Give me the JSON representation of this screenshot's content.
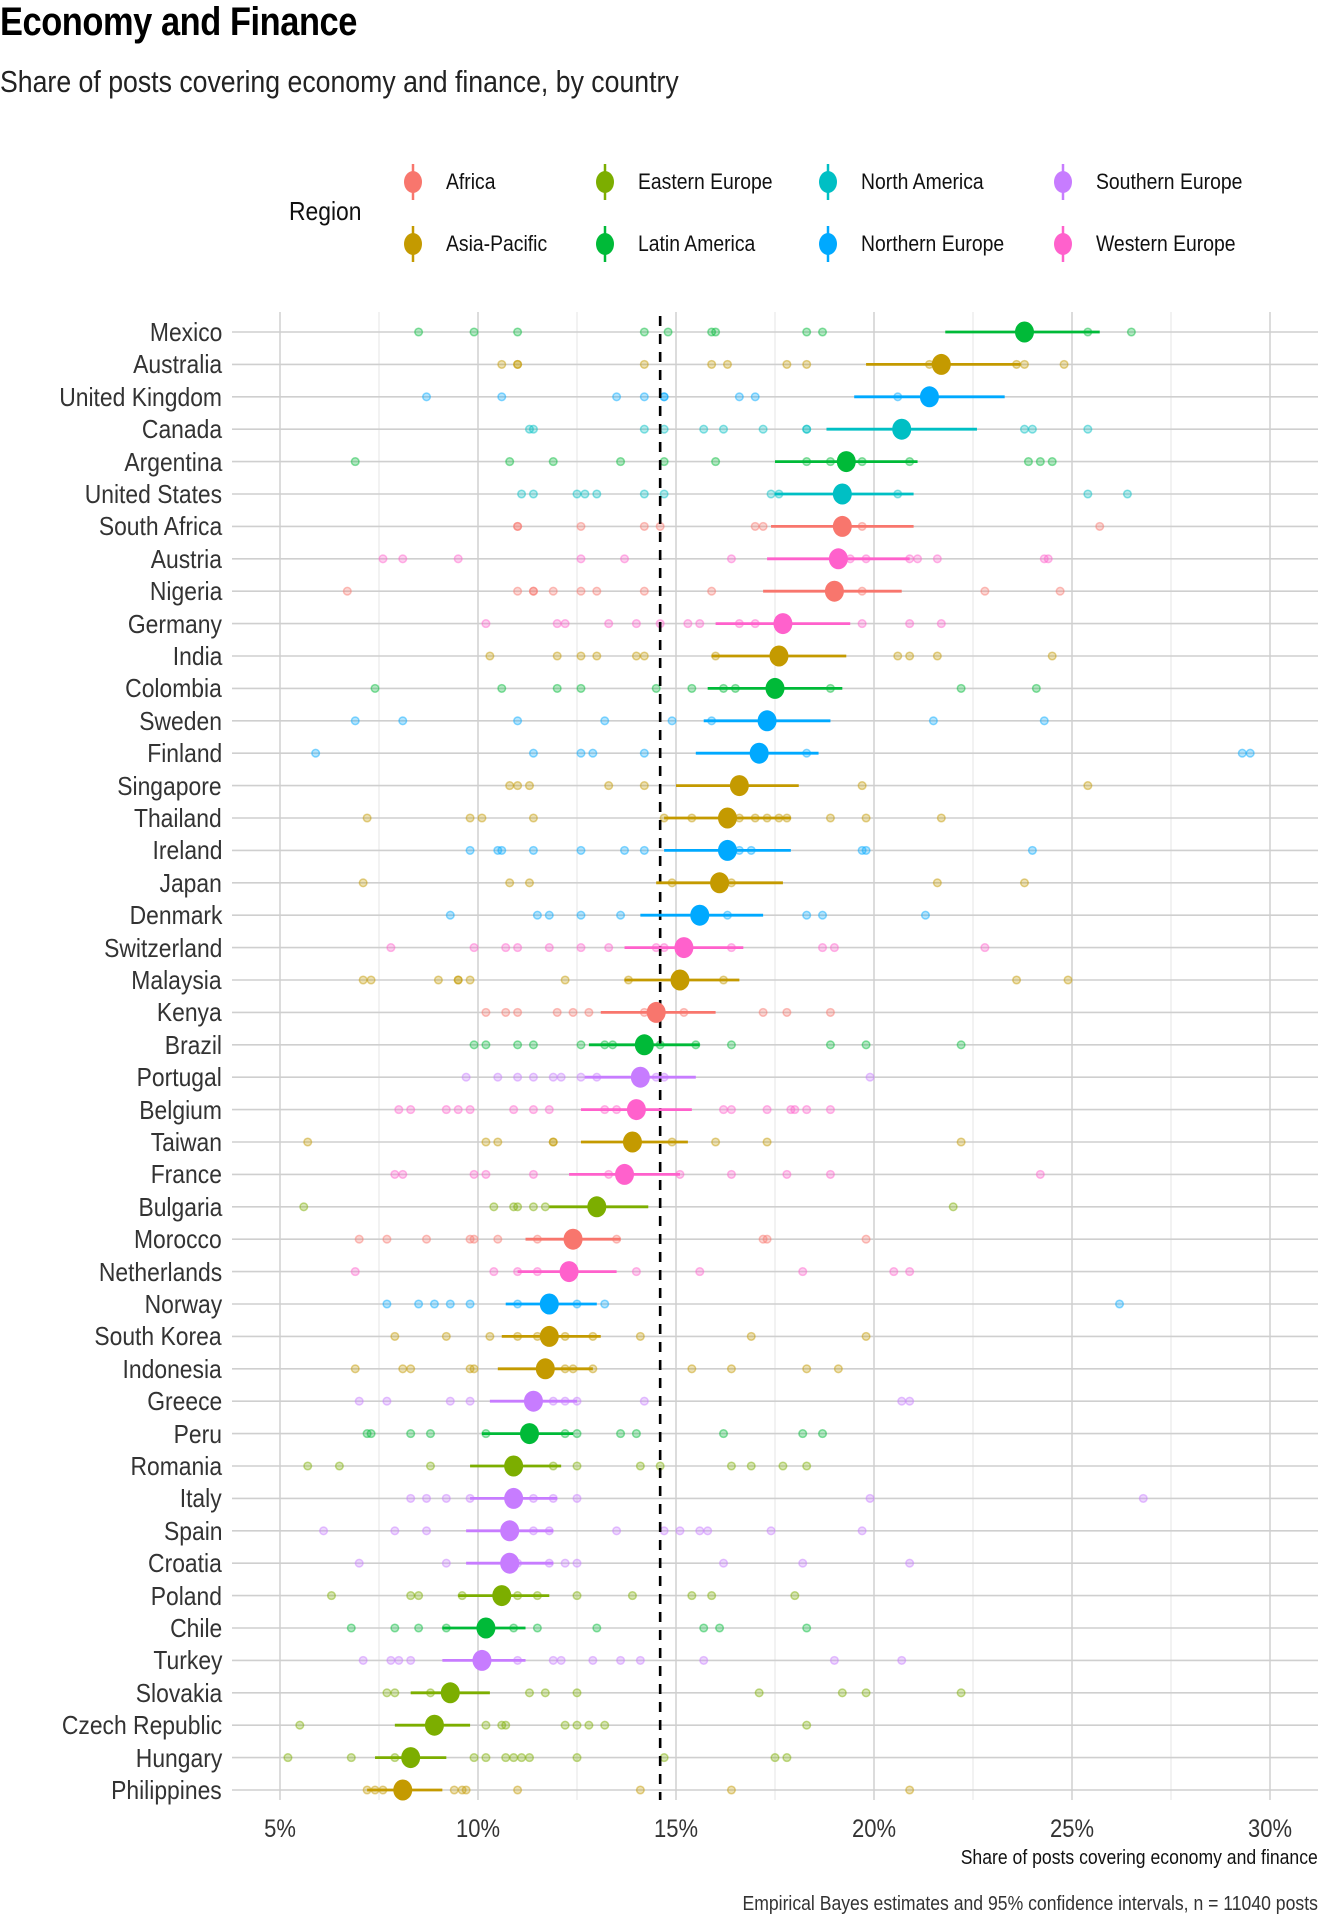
{
  "title": "Economy and Finance",
  "subtitle": "Share of posts covering economy and finance, by country",
  "legend": {
    "title": "Region",
    "items": [
      {
        "label": "Africa",
        "color": "#F8766D"
      },
      {
        "label": "Asia-Pacific",
        "color": "#C49A00"
      },
      {
        "label": "Eastern Europe",
        "color": "#7CAE00"
      },
      {
        "label": "Latin America",
        "color": "#00BA38"
      },
      {
        "label": "North America",
        "color": "#00BFC4"
      },
      {
        "label": "Northern Europe",
        "color": "#00A9FF"
      },
      {
        "label": "Southern Europe",
        "color": "#C77CFF"
      },
      {
        "label": "Western Europe",
        "color": "#FF61CC"
      }
    ]
  },
  "chart_data": {
    "type": "scatter",
    "subtype": "dot-and-whisker (point estimate with 95% CI plus raw source points)",
    "title": "Economy and Finance",
    "subtitle": "Share of posts covering economy and finance, by country",
    "xlabel": "Share of posts covering economy and finance",
    "ylabel": "",
    "caption": "Empirical Bayes estimates and 95% confidence intervals, n = 11040 posts",
    "xlim": [
      3.8,
      31.4
    ],
    "x_ticks": [
      5,
      10,
      15,
      20,
      25,
      30
    ],
    "x_tick_labels": [
      "5%",
      "10%",
      "15%",
      "20%",
      "25%",
      "30%"
    ],
    "reference_line": {
      "value": 14.6,
      "style": "dashed"
    },
    "grid": true,
    "legend_position": "top",
    "units": "percent",
    "countries": [
      {
        "country": "Mexico",
        "region": "Latin America",
        "estimate": 23.8,
        "ci": [
          21.8,
          25.7
        ],
        "points": [
          8.5,
          9.9,
          11.0,
          14.2,
          14.8,
          15.9,
          16.0,
          18.3,
          18.7,
          25.4,
          26.5
        ]
      },
      {
        "country": "Australia",
        "region": "Asia-Pacific",
        "estimate": 21.7,
        "ci": [
          19.8,
          23.7
        ],
        "points": [
          10.6,
          11.0,
          11.0,
          14.2,
          15.9,
          16.3,
          17.8,
          18.3,
          21.4,
          23.6,
          23.8,
          24.8
        ]
      },
      {
        "country": "United Kingdom",
        "region": "Northern Europe",
        "estimate": 21.4,
        "ci": [
          19.5,
          23.3
        ],
        "points": [
          8.7,
          10.6,
          13.5,
          14.2,
          14.7,
          14.7,
          16.6,
          17.0,
          20.6
        ]
      },
      {
        "country": "Canada",
        "region": "North America",
        "estimate": 20.7,
        "ci": [
          18.8,
          22.6
        ],
        "points": [
          11.3,
          11.4,
          14.2,
          14.7,
          15.7,
          16.2,
          17.2,
          18.3,
          18.3,
          23.8,
          24.0,
          25.4
        ]
      },
      {
        "country": "Argentina",
        "region": "Latin America",
        "estimate": 19.3,
        "ci": [
          17.5,
          21.1
        ],
        "points": [
          6.9,
          10.8,
          11.9,
          13.6,
          14.7,
          16.0,
          18.3,
          18.9,
          19.7,
          20.9,
          23.9,
          24.2,
          24.5
        ]
      },
      {
        "country": "United States",
        "region": "North America",
        "estimate": 19.2,
        "ci": [
          17.5,
          21.0
        ],
        "points": [
          11.1,
          11.4,
          12.5,
          12.7,
          13.0,
          14.2,
          14.7,
          17.4,
          17.6,
          20.6,
          25.4,
          26.4
        ]
      },
      {
        "country": "South Africa",
        "region": "Africa",
        "estimate": 19.2,
        "ci": [
          17.4,
          21.0
        ],
        "points": [
          11.0,
          11.0,
          12.6,
          14.2,
          14.6,
          17.0,
          17.2,
          19.7,
          25.7
        ]
      },
      {
        "country": "Austria",
        "region": "Western Europe",
        "estimate": 19.1,
        "ci": [
          17.3,
          20.9
        ],
        "points": [
          7.6,
          8.1,
          9.5,
          12.6,
          13.7,
          16.4,
          19.4,
          19.8,
          20.9,
          21.1,
          21.6,
          24.3,
          24.4
        ]
      },
      {
        "country": "Nigeria",
        "region": "Africa",
        "estimate": 19.0,
        "ci": [
          17.2,
          20.7
        ],
        "points": [
          6.7,
          11.0,
          11.4,
          11.4,
          11.9,
          12.6,
          13.0,
          14.2,
          15.9,
          19.7,
          22.8,
          24.7
        ]
      },
      {
        "country": "Germany",
        "region": "Western Europe",
        "estimate": 17.7,
        "ci": [
          16.0,
          19.4
        ],
        "points": [
          10.2,
          12.0,
          12.2,
          13.3,
          14.0,
          14.6,
          15.3,
          15.6,
          16.6,
          17.0,
          19.7,
          20.9,
          21.7
        ]
      },
      {
        "country": "India",
        "region": "Asia-Pacific",
        "estimate": 17.6,
        "ci": [
          15.9,
          19.3
        ],
        "points": [
          10.3,
          12.0,
          12.6,
          13.0,
          14.0,
          14.2,
          16.0,
          20.6,
          20.9,
          21.6,
          24.5
        ]
      },
      {
        "country": "Colombia",
        "region": "Latin America",
        "estimate": 17.5,
        "ci": [
          15.8,
          19.2
        ],
        "points": [
          7.4,
          10.6,
          12.0,
          12.6,
          14.5,
          15.4,
          16.2,
          16.5,
          18.9,
          22.2,
          24.1
        ]
      },
      {
        "country": "Sweden",
        "region": "Northern Europe",
        "estimate": 17.3,
        "ci": [
          15.7,
          18.9
        ],
        "points": [
          6.9,
          8.1,
          11.0,
          13.2,
          14.9,
          15.9,
          21.5,
          24.3
        ]
      },
      {
        "country": "Finland",
        "region": "Northern Europe",
        "estimate": 17.1,
        "ci": [
          15.5,
          18.6
        ],
        "points": [
          5.9,
          11.4,
          12.6,
          12.9,
          14.2,
          18.3,
          29.3,
          29.5
        ]
      },
      {
        "country": "Singapore",
        "region": "Asia-Pacific",
        "estimate": 16.6,
        "ci": [
          15.0,
          18.1
        ],
        "points": [
          10.8,
          11.0,
          11.3,
          13.3,
          14.2,
          19.7,
          25.4
        ]
      },
      {
        "country": "Thailand",
        "region": "Asia-Pacific",
        "estimate": 16.3,
        "ci": [
          14.7,
          17.9
        ],
        "points": [
          7.2,
          9.8,
          10.1,
          11.4,
          14.7,
          15.4,
          16.6,
          17.0,
          17.3,
          17.6,
          17.8,
          18.9,
          19.8,
          21.7
        ]
      },
      {
        "country": "Ireland",
        "region": "Northern Europe",
        "estimate": 16.3,
        "ci": [
          14.7,
          17.9
        ],
        "points": [
          9.8,
          10.5,
          10.6,
          11.4,
          12.6,
          13.7,
          14.2,
          16.6,
          16.9,
          19.7,
          19.8,
          24.0
        ]
      },
      {
        "country": "Japan",
        "region": "Asia-Pacific",
        "estimate": 16.1,
        "ci": [
          14.5,
          17.7
        ],
        "points": [
          7.1,
          10.8,
          11.3,
          14.9,
          16.4,
          21.6,
          23.8
        ]
      },
      {
        "country": "Denmark",
        "region": "Northern Europe",
        "estimate": 15.6,
        "ci": [
          14.1,
          17.2
        ],
        "points": [
          9.3,
          11.5,
          11.8,
          12.6,
          13.6,
          16.3,
          18.3,
          18.7,
          21.3
        ]
      },
      {
        "country": "Switzerland",
        "region": "Western Europe",
        "estimate": 15.2,
        "ci": [
          13.7,
          16.7
        ],
        "points": [
          7.8,
          9.9,
          10.7,
          11.0,
          11.8,
          12.6,
          13.3,
          14.5,
          14.7,
          16.4,
          18.7,
          19.0,
          22.8
        ]
      },
      {
        "country": "Malaysia",
        "region": "Asia-Pacific",
        "estimate": 15.1,
        "ci": [
          13.7,
          16.6
        ],
        "points": [
          7.1,
          7.3,
          9.0,
          9.5,
          9.5,
          9.8,
          12.2,
          13.8,
          16.2,
          23.6,
          24.9
        ]
      },
      {
        "country": "Kenya",
        "region": "Africa",
        "estimate": 14.5,
        "ci": [
          13.1,
          16.0
        ],
        "points": [
          10.2,
          10.7,
          11.0,
          12.0,
          12.4,
          12.8,
          14.2,
          15.2,
          17.2,
          17.8,
          18.9
        ]
      },
      {
        "country": "Brazil",
        "region": "Latin America",
        "estimate": 14.2,
        "ci": [
          12.8,
          15.6
        ],
        "points": [
          9.9,
          10.2,
          11.0,
          11.4,
          12.6,
          13.2,
          13.4,
          14.6,
          15.5,
          16.4,
          18.9,
          19.8,
          22.2
        ]
      },
      {
        "country": "Portugal",
        "region": "Southern Europe",
        "estimate": 14.1,
        "ci": [
          12.7,
          15.5
        ],
        "points": [
          9.7,
          10.5,
          11.0,
          11.4,
          11.9,
          12.1,
          12.6,
          13.0,
          14.5,
          14.7,
          19.9
        ]
      },
      {
        "country": "Belgium",
        "region": "Western Europe",
        "estimate": 14.0,
        "ci": [
          12.6,
          15.4
        ],
        "points": [
          8.0,
          8.3,
          9.2,
          9.5,
          9.8,
          10.9,
          11.4,
          11.8,
          13.2,
          13.5,
          16.2,
          16.4,
          17.3,
          17.9,
          18.0,
          18.3,
          18.9
        ]
      },
      {
        "country": "Taiwan",
        "region": "Asia-Pacific",
        "estimate": 13.9,
        "ci": [
          12.6,
          15.3
        ],
        "points": [
          5.7,
          10.2,
          10.5,
          11.9,
          11.9,
          14.9,
          16.0,
          17.3,
          22.2
        ]
      },
      {
        "country": "France",
        "region": "Western Europe",
        "estimate": 13.7,
        "ci": [
          12.3,
          15.1
        ],
        "points": [
          7.9,
          8.1,
          9.9,
          10.2,
          11.4,
          13.3,
          15.1,
          16.4,
          17.8,
          18.9,
          24.2
        ]
      },
      {
        "country": "Bulgaria",
        "region": "Eastern Europe",
        "estimate": 13.0,
        "ci": [
          11.8,
          14.3
        ],
        "points": [
          5.6,
          10.4,
          10.9,
          11.0,
          11.4,
          11.7,
          22.0
        ]
      },
      {
        "country": "Morocco",
        "region": "Africa",
        "estimate": 12.4,
        "ci": [
          11.2,
          13.6
        ],
        "points": [
          7.0,
          7.7,
          8.7,
          9.8,
          9.9,
          10.5,
          11.5,
          13.5,
          17.2,
          17.3,
          19.8
        ]
      },
      {
        "country": "Netherlands",
        "region": "Western Europe",
        "estimate": 12.3,
        "ci": [
          11.0,
          13.5
        ],
        "points": [
          6.9,
          10.4,
          11.0,
          11.5,
          14.0,
          15.6,
          18.2,
          20.5,
          20.9
        ]
      },
      {
        "country": "Norway",
        "region": "Northern Europe",
        "estimate": 11.8,
        "ci": [
          10.7,
          13.0
        ],
        "points": [
          7.7,
          8.5,
          8.9,
          9.3,
          9.8,
          11.0,
          12.5,
          13.2,
          26.2
        ]
      },
      {
        "country": "South Korea",
        "region": "Asia-Pacific",
        "estimate": 11.8,
        "ci": [
          10.6,
          13.1
        ],
        "points": [
          7.9,
          9.2,
          10.3,
          11.0,
          11.5,
          12.2,
          12.9,
          14.1,
          16.9,
          19.8
        ]
      },
      {
        "country": "Indonesia",
        "region": "Asia-Pacific",
        "estimate": 11.7,
        "ci": [
          10.5,
          12.9
        ],
        "points": [
          6.9,
          8.1,
          8.3,
          9.8,
          9.9,
          12.2,
          12.4,
          12.9,
          15.4,
          16.4,
          18.3,
          19.1
        ]
      },
      {
        "country": "Greece",
        "region": "Southern Europe",
        "estimate": 11.4,
        "ci": [
          10.3,
          12.5
        ],
        "points": [
          7.0,
          7.7,
          9.3,
          9.8,
          11.9,
          12.2,
          12.5,
          14.2,
          20.7,
          20.9
        ]
      },
      {
        "country": "Peru",
        "region": "Latin America",
        "estimate": 11.3,
        "ci": [
          10.1,
          12.4
        ],
        "points": [
          7.2,
          7.3,
          8.3,
          8.8,
          10.2,
          12.2,
          12.5,
          13.6,
          14.0,
          16.2,
          18.2,
          18.7
        ]
      },
      {
        "country": "Romania",
        "region": "Eastern Europe",
        "estimate": 10.9,
        "ci": [
          9.8,
          12.1
        ],
        "points": [
          5.7,
          6.5,
          8.8,
          11.9,
          12.5,
          14.1,
          14.6,
          16.4,
          16.9,
          17.7,
          18.3
        ]
      },
      {
        "country": "Italy",
        "region": "Southern Europe",
        "estimate": 10.9,
        "ci": [
          9.8,
          12.0
        ],
        "points": [
          8.3,
          8.7,
          9.2,
          9.8,
          11.4,
          11.9,
          12.5,
          19.9,
          26.8
        ]
      },
      {
        "country": "Spain",
        "region": "Southern Europe",
        "estimate": 10.8,
        "ci": [
          9.7,
          11.9
        ],
        "points": [
          6.1,
          7.9,
          8.7,
          11.4,
          11.8,
          13.5,
          14.7,
          15.1,
          15.6,
          15.8,
          17.4,
          19.7
        ]
      },
      {
        "country": "Croatia",
        "region": "Southern Europe",
        "estimate": 10.8,
        "ci": [
          9.7,
          11.9
        ],
        "points": [
          7.0,
          9.2,
          11.0,
          11.8,
          12.2,
          12.5,
          16.2,
          18.2,
          20.9
        ]
      },
      {
        "country": "Poland",
        "region": "Eastern Europe",
        "estimate": 10.6,
        "ci": [
          9.5,
          11.8
        ],
        "points": [
          6.3,
          8.3,
          8.5,
          9.6,
          11.0,
          11.5,
          12.5,
          13.9,
          15.4,
          15.9,
          18.0
        ]
      },
      {
        "country": "Chile",
        "region": "Latin America",
        "estimate": 10.2,
        "ci": [
          9.1,
          11.2
        ],
        "points": [
          6.8,
          7.9,
          8.5,
          9.2,
          10.9,
          11.5,
          13.0,
          15.7,
          16.1,
          18.3
        ]
      },
      {
        "country": "Turkey",
        "region": "Southern Europe",
        "estimate": 10.1,
        "ci": [
          9.1,
          11.2
        ],
        "points": [
          7.1,
          7.8,
          8.0,
          8.3,
          11.0,
          11.9,
          12.1,
          12.9,
          13.6,
          14.1,
          15.7,
          19.0,
          20.7
        ]
      },
      {
        "country": "Slovakia",
        "region": "Eastern Europe",
        "estimate": 9.3,
        "ci": [
          8.3,
          10.3
        ],
        "points": [
          7.7,
          7.9,
          8.8,
          11.3,
          11.7,
          12.5,
          17.1,
          19.2,
          19.8,
          22.2
        ]
      },
      {
        "country": "Czech Republic",
        "region": "Eastern Europe",
        "estimate": 8.9,
        "ci": [
          7.9,
          9.8
        ],
        "points": [
          5.5,
          10.2,
          10.6,
          10.7,
          12.2,
          12.5,
          12.8,
          13.2,
          18.3
        ]
      },
      {
        "country": "Hungary",
        "region": "Eastern Europe",
        "estimate": 8.3,
        "ci": [
          7.4,
          9.2
        ],
        "points": [
          5.2,
          6.8,
          7.9,
          9.9,
          10.2,
          10.7,
          10.9,
          11.1,
          11.3,
          12.5,
          14.7,
          17.5,
          17.8
        ]
      },
      {
        "country": "Philippines",
        "region": "Asia-Pacific",
        "estimate": 8.1,
        "ci": [
          7.2,
          9.1
        ],
        "points": [
          7.2,
          7.4,
          7.6,
          9.4,
          9.6,
          9.7,
          11.0,
          14.1,
          16.4,
          20.9
        ]
      }
    ]
  }
}
